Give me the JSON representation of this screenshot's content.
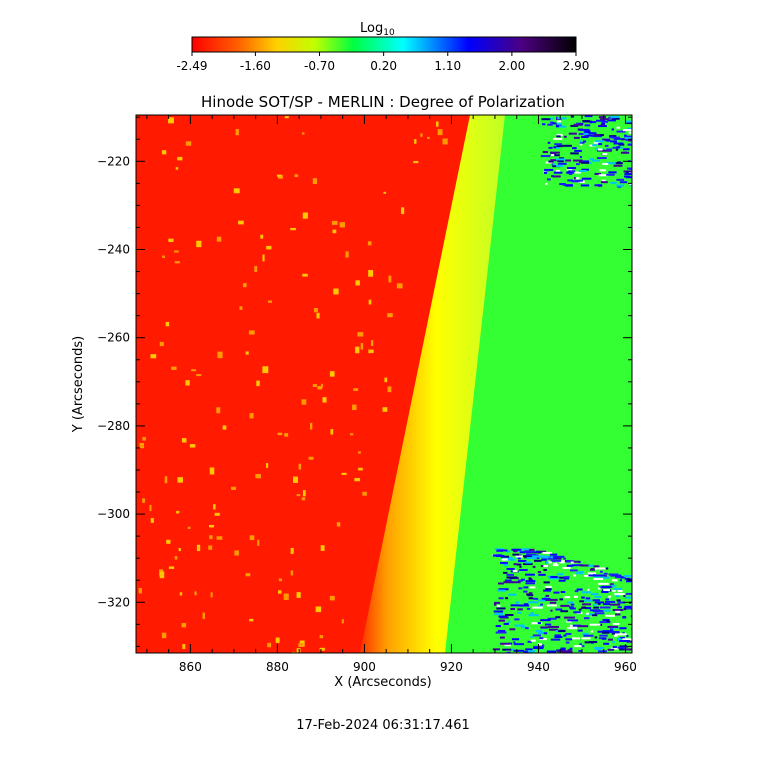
{
  "chart_data": {
    "type": "heatmap",
    "title": "Hinode SOT/SP - MERLIN : Degree of Polarization",
    "xlabel": "X (Arcseconds)",
    "ylabel": "Y (Arcseconds)",
    "xlim": [
      847.5,
      961.5
    ],
    "ylim": [
      -331.5,
      -209.5
    ],
    "x_ticks": [
      860,
      880,
      900,
      920,
      940,
      960
    ],
    "y_ticks": [
      -220,
      -240,
      -260,
      -280,
      -300,
      -320
    ],
    "colorbar": {
      "label_main": "Log",
      "label_sub": "10",
      "range": [
        -2.49,
        2.9
      ],
      "tick_values": [
        -2.49,
        -1.6,
        -0.7,
        0.2,
        1.1,
        2.0,
        2.9
      ],
      "tick_labels": [
        "-2.49",
        "-1.60",
        "-0.70",
        "0.20",
        "1.10",
        "2.00",
        "2.90"
      ],
      "colors": [
        "#ff0000",
        "#ff8000",
        "#ffff00",
        "#00ff00",
        "#00ffff",
        "#0000ff",
        "#4b0082",
        "#000000"
      ]
    },
    "regions": [
      {
        "name": "disk-interior",
        "approx_log_dop": -2.2,
        "color": "#ff1a00"
      },
      {
        "name": "limb-transition",
        "approx_log_dop": -0.9,
        "color": "#ffff00"
      },
      {
        "name": "off-limb",
        "approx_log_dop": 0.2,
        "color": "#33ff33"
      },
      {
        "name": "noisy-corners",
        "approx_log_dop": 2.0,
        "color": "#0000ff"
      }
    ],
    "limb_x_at": {
      "y_-209.5": 928,
      "y_-331.5": 901
    }
  },
  "footer": {
    "timestamp": "17-Feb-2024 06:31:17.461"
  }
}
